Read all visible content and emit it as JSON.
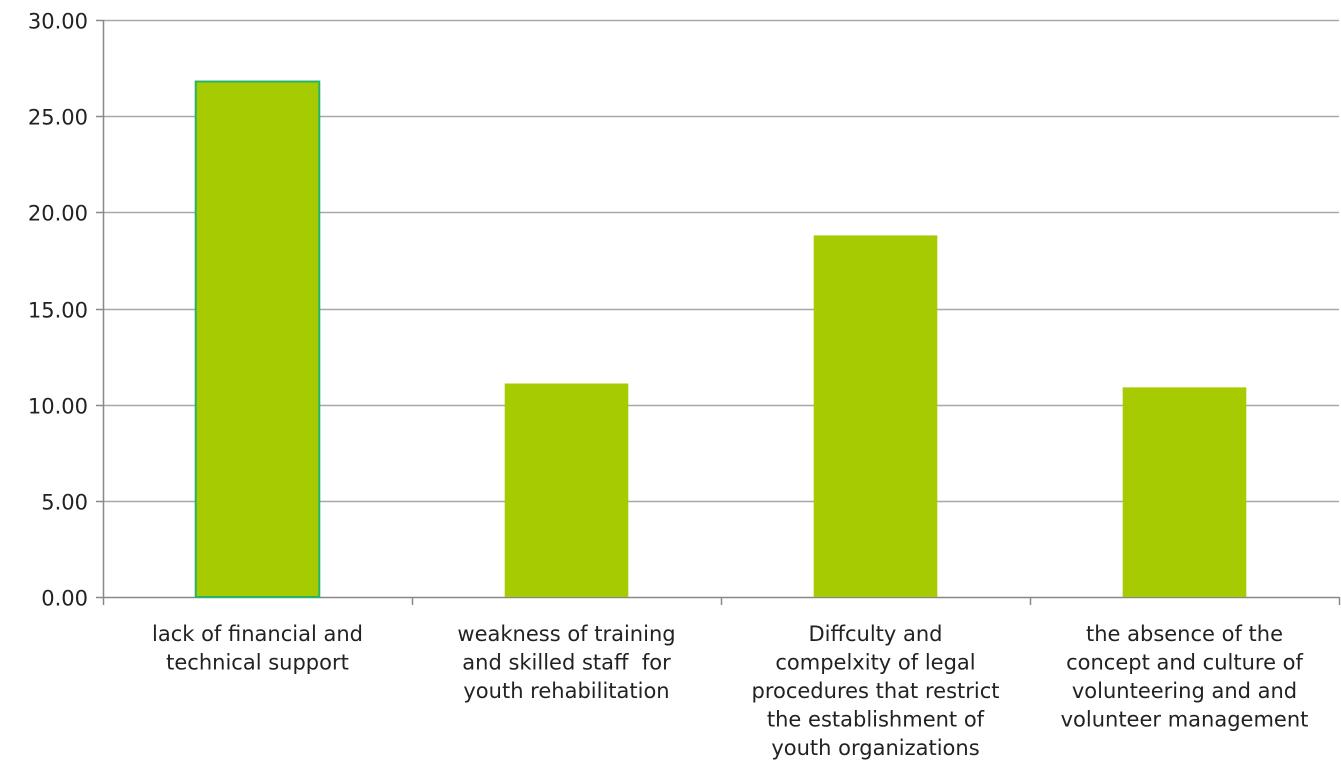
{
  "chart_data": {
    "type": "bar",
    "categories": [
      [
        "lack of financial and",
        "technical support"
      ],
      [
        "weakness of training",
        "and skilled staff  for",
        "youth rehabilitation"
      ],
      [
        "Diffculty and",
        "compelxity of legal",
        "procedures that restrict",
        "the establishment of",
        "youth organizations"
      ],
      [
        "the absence of the",
        "concept and culture of",
        "volunteering and and",
        "volunteer management"
      ]
    ],
    "values": [
      26.8,
      11.1,
      18.8,
      10.9
    ],
    "ylim": [
      0,
      30
    ],
    "yticks": [
      "0.00",
      "5.00",
      "10.00",
      "15.00",
      "20.00",
      "25.00",
      "30.00"
    ],
    "grid": true,
    "colors": {
      "bar": "#a6cb00",
      "highlight_outline": "#27b36a",
      "grid": "#a8a8a8",
      "axis": "#888888"
    }
  }
}
